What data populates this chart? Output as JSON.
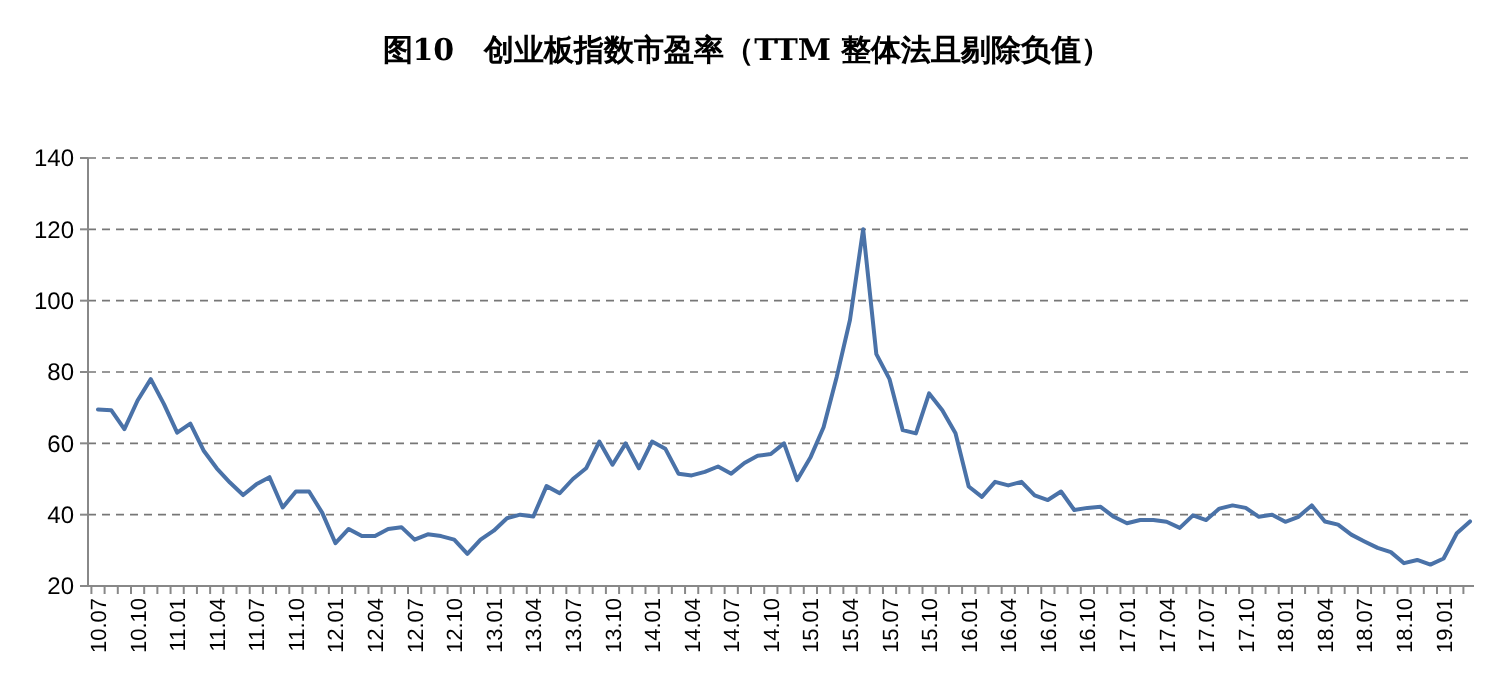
{
  "chart_data": {
    "type": "line",
    "title": "图10　创业板指数市盈率（TTM 整体法且剔除负值）",
    "categories": [
      "10.07",
      null,
      null,
      "10.10",
      null,
      null,
      "11.01",
      null,
      null,
      "11.04",
      null,
      null,
      "11.07",
      null,
      null,
      "11.10",
      null,
      null,
      "12.01",
      null,
      null,
      "12.04",
      null,
      null,
      "12.07",
      null,
      null,
      "12.10",
      null,
      null,
      "13.01",
      null,
      null,
      "13.04",
      null,
      null,
      "13.07",
      null,
      null,
      "13.10",
      null,
      null,
      "14.01",
      null,
      null,
      "14.04",
      null,
      null,
      "14.07",
      null,
      null,
      "14.10",
      null,
      null,
      "15.01",
      null,
      null,
      "15.04",
      null,
      null,
      "15.07",
      null,
      null,
      "15.10",
      null,
      null,
      "16.01",
      null,
      null,
      "16.04",
      null,
      null,
      "16.07",
      null,
      null,
      "16.10",
      null,
      null,
      "17.01",
      null,
      null,
      "17.04",
      null,
      null,
      "17.07",
      null,
      null,
      "17.10",
      null,
      null,
      "18.01",
      null,
      null,
      "18.04",
      null,
      null,
      "18.07",
      null,
      null,
      "18.10",
      null,
      null,
      "19.01",
      null,
      null
    ],
    "series": [
      {
        "color": "#4a72a8",
        "values": [
          69.5,
          69.3,
          64,
          72,
          78,
          71,
          63,
          65.5,
          58,
          53,
          49,
          45.5,
          48.5,
          50.5,
          42,
          46.5,
          46.5,
          40.5,
          32,
          36,
          34,
          34,
          36,
          36.5,
          33,
          34.5,
          34,
          33,
          29,
          33,
          35.5,
          39,
          40,
          39.5,
          48,
          46,
          50,
          53,
          60.5,
          54,
          60,
          53,
          60.5,
          58.5,
          51.5,
          51,
          52,
          53.5,
          51.5,
          54.5,
          56.5,
          57,
          60,
          49.7,
          56,
          64.5,
          78.7,
          94.6,
          120,
          85,
          78,
          63.7,
          62.8,
          74,
          69.3,
          62.8,
          47.9,
          45,
          49.2,
          48.2,
          49.2,
          45.4,
          44.1,
          46.5,
          41.3,
          41.9,
          42.2,
          39.4,
          37.6,
          38.5,
          38.5,
          38,
          36.3,
          39.8,
          38.5,
          41.7,
          42.6,
          41.9,
          39.4,
          40,
          38,
          39.4,
          42.6,
          38.1,
          37.2,
          34.4,
          32.5,
          30.7,
          29.5,
          26.4,
          27.3,
          26,
          27.7,
          34.8,
          38.1
        ]
      }
    ],
    "ylim": [
      20,
      140
    ],
    "yticks": [
      20,
      40,
      60,
      80,
      100,
      120,
      140
    ],
    "grid": "y",
    "line_style": "solid"
  }
}
